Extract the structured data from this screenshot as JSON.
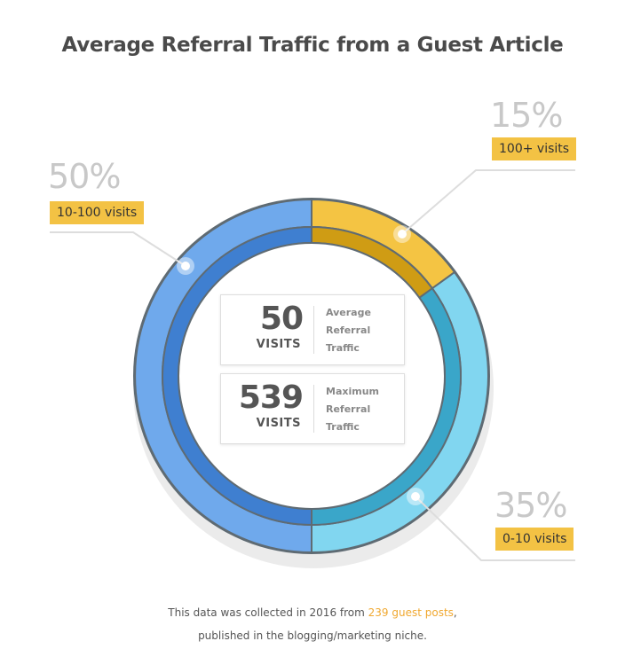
{
  "title": "Average Referral Traffic from a Guest Article",
  "chart_data": {
    "type": "pie",
    "style": "donut",
    "slices": [
      {
        "label": "10-100 visits",
        "percent_label": "50%",
        "value": 50,
        "color": "#6fa9ec",
        "inner_color": "#3f7fd0"
      },
      {
        "label": "100+ visits",
        "percent_label": "15%",
        "value": 15,
        "color": "#f4c443",
        "inner_color": "#cf9c14"
      },
      {
        "label": "0-10 visits",
        "percent_label": "35%",
        "value": 35,
        "color": "#81d6f0",
        "inner_color": "#3aa6c9"
      }
    ],
    "legend": "callouts"
  },
  "stats": [
    {
      "number": "50",
      "unit": "VISITS",
      "desc_1": "Average",
      "desc_2": "Referral",
      "desc_3": "Traffic"
    },
    {
      "number": "539",
      "unit": "VISITS",
      "desc_1": "Maximum",
      "desc_2": "Referral",
      "desc_3": "Traffic"
    }
  ],
  "footer": {
    "line1_before": "This data was collected in 2016 from ",
    "line1_link": "239 guest posts",
    "line1_after": ",",
    "line2": "published in the blogging/marketing niche."
  },
  "colors": {
    "label_bg": "#f3c244",
    "pct_text": "#c8c8c8",
    "highlight": "#f0a830"
  }
}
